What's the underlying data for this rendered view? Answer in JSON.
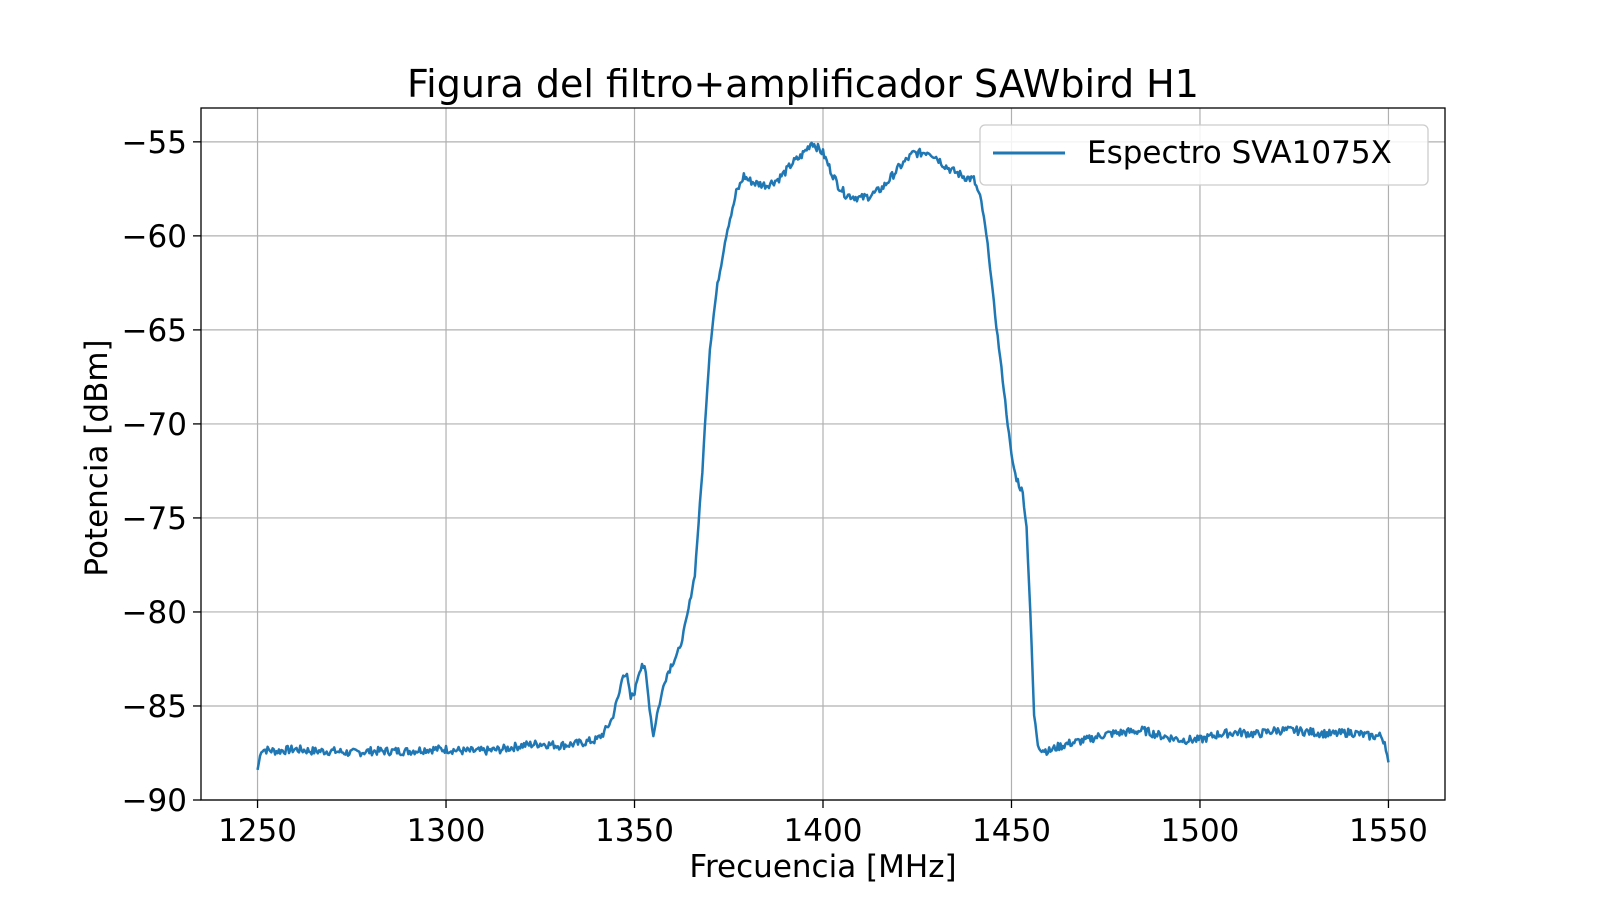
{
  "chart_data": {
    "type": "line",
    "title": "Figura del filtro+amplificador SAWbird H1",
    "xlabel": "Frecuencia [MHz]",
    "ylabel": "Potencia [dBm]",
    "xlim": [
      1235,
      1565
    ],
    "ylim": [
      -90,
      -53.2
    ],
    "xticks": [
      1250,
      1300,
      1350,
      1400,
      1450,
      1500,
      1550
    ],
    "xtick_labels": [
      "1250",
      "1300",
      "1350",
      "1400",
      "1450",
      "1500",
      "1550"
    ],
    "yticks": [
      -90,
      -85,
      -80,
      -75,
      -70,
      -65,
      -60,
      -55
    ],
    "ytick_labels": [
      "−90",
      "−85",
      "−80",
      "−75",
      "−70",
      "−65",
      "−60",
      "−55"
    ],
    "grid": true,
    "legend_position": "top-right",
    "series": [
      {
        "name": "Espectro SVA1075X",
        "color": "#1f77b4",
        "points": [
          [
            1250,
            -88.4
          ],
          [
            1251,
            -87.3
          ],
          [
            1255,
            -87.4
          ],
          [
            1260,
            -87.3
          ],
          [
            1265,
            -87.4
          ],
          [
            1270,
            -87.4
          ],
          [
            1275,
            -87.5
          ],
          [
            1280,
            -87.4
          ],
          [
            1285,
            -87.4
          ],
          [
            1290,
            -87.4
          ],
          [
            1295,
            -87.3
          ],
          [
            1300,
            -87.3
          ],
          [
            1305,
            -87.4
          ],
          [
            1310,
            -87.4
          ],
          [
            1315,
            -87.3
          ],
          [
            1320,
            -87.1
          ],
          [
            1325,
            -87.0
          ],
          [
            1330,
            -87.1
          ],
          [
            1335,
            -87.0
          ],
          [
            1340,
            -86.8
          ],
          [
            1342,
            -86.4
          ],
          [
            1344,
            -85.7
          ],
          [
            1346,
            -84.3
          ],
          [
            1347,
            -83.2
          ],
          [
            1348,
            -83.4
          ],
          [
            1349,
            -84.6
          ],
          [
            1350,
            -84.3
          ],
          [
            1351,
            -83.3
          ],
          [
            1352,
            -82.7
          ],
          [
            1353,
            -83.3
          ],
          [
            1354,
            -85.1
          ],
          [
            1355,
            -86.6
          ],
          [
            1356,
            -85.4
          ],
          [
            1357,
            -84.6
          ],
          [
            1358,
            -83.6
          ],
          [
            1360,
            -82.7
          ],
          [
            1362,
            -82.0
          ],
          [
            1364,
            -80.2
          ],
          [
            1366,
            -78.0
          ],
          [
            1368,
            -72.5
          ],
          [
            1369,
            -69.0
          ],
          [
            1370,
            -66.0
          ],
          [
            1371,
            -64.2
          ],
          [
            1372,
            -62.6
          ],
          [
            1373,
            -61.5
          ],
          [
            1374,
            -60.3
          ],
          [
            1375,
            -59.3
          ],
          [
            1376,
            -58.6
          ],
          [
            1377,
            -57.7
          ],
          [
            1378,
            -57.3
          ],
          [
            1379,
            -56.8
          ],
          [
            1380,
            -57.0
          ],
          [
            1382,
            -57.2
          ],
          [
            1385,
            -57.3
          ],
          [
            1388,
            -57.0
          ],
          [
            1390,
            -56.6
          ],
          [
            1392,
            -56.1
          ],
          [
            1394,
            -55.8
          ],
          [
            1396,
            -55.3
          ],
          [
            1397,
            -55.0
          ],
          [
            1398,
            -55.2
          ],
          [
            1400,
            -55.6
          ],
          [
            1402,
            -56.5
          ],
          [
            1404,
            -57.3
          ],
          [
            1406,
            -57.8
          ],
          [
            1408,
            -57.9
          ],
          [
            1410,
            -58.0
          ],
          [
            1412,
            -57.9
          ],
          [
            1414,
            -57.7
          ],
          [
            1416,
            -57.4
          ],
          [
            1418,
            -56.9
          ],
          [
            1420,
            -56.4
          ],
          [
            1422,
            -56.0
          ],
          [
            1424,
            -55.6
          ],
          [
            1426,
            -55.6
          ],
          [
            1428,
            -55.5
          ],
          [
            1430,
            -55.8
          ],
          [
            1432,
            -56.2
          ],
          [
            1434,
            -56.5
          ],
          [
            1436,
            -56.7
          ],
          [
            1438,
            -56.9
          ],
          [
            1440,
            -57.0
          ],
          [
            1441,
            -57.6
          ],
          [
            1442,
            -58.2
          ],
          [
            1443,
            -59.5
          ],
          [
            1444,
            -61.0
          ],
          [
            1445,
            -63.0
          ],
          [
            1446,
            -64.8
          ],
          [
            1447,
            -66.5
          ],
          [
            1448,
            -68.2
          ],
          [
            1449,
            -70.0
          ],
          [
            1450,
            -71.7
          ],
          [
            1451,
            -72.7
          ],
          [
            1452,
            -73.2
          ],
          [
            1453,
            -73.7
          ],
          [
            1454,
            -75.5
          ],
          [
            1455,
            -80.0
          ],
          [
            1456,
            -85.5
          ],
          [
            1457,
            -87.0
          ],
          [
            1458,
            -87.3
          ],
          [
            1460,
            -87.4
          ],
          [
            1462,
            -87.2
          ],
          [
            1465,
            -87.0
          ],
          [
            1470,
            -86.8
          ],
          [
            1475,
            -86.5
          ],
          [
            1480,
            -86.4
          ],
          [
            1485,
            -86.3
          ],
          [
            1490,
            -86.6
          ],
          [
            1495,
            -86.8
          ],
          [
            1500,
            -86.8
          ],
          [
            1505,
            -86.5
          ],
          [
            1510,
            -86.4
          ],
          [
            1515,
            -86.5
          ],
          [
            1520,
            -86.3
          ],
          [
            1525,
            -86.3
          ],
          [
            1530,
            -86.4
          ],
          [
            1535,
            -86.5
          ],
          [
            1540,
            -86.4
          ],
          [
            1545,
            -86.6
          ],
          [
            1548,
            -86.6
          ],
          [
            1549,
            -86.9
          ],
          [
            1550,
            -88.0
          ]
        ]
      }
    ]
  }
}
